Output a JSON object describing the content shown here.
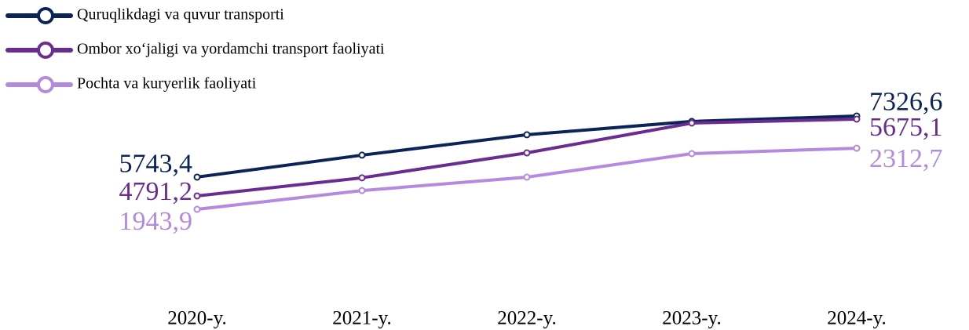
{
  "chart_data": {
    "type": "line",
    "categories": [
      "2020-y.",
      "2021-y.",
      "2022-y.",
      "2023-y.",
      "2024-y."
    ],
    "series": [
      {
        "name": "Quruqlikdagi va quvur  transporti",
        "color": "#0b2458",
        "ylim": [
          4240,
          8300
        ],
        "values": [
          5743.4,
          6312,
          6840,
          7185,
          7326.6
        ],
        "value_labels": [
          "5743,4",
          null,
          null,
          null,
          "7326,6"
        ]
      },
      {
        "name": "Ombor xo‘jaligi va yordamchi transport faoliyati",
        "color": "#6b2c92",
        "ylim": [
          4340,
          6144
        ],
        "values": [
          4791.2,
          5000,
          5287,
          5630,
          5675.1
        ],
        "value_labels": [
          "4791,2",
          null,
          null,
          null,
          "5675,1"
        ]
      },
      {
        "name": "Pochta va kuryerlik faoliyati",
        "color": "#b48ae0",
        "ylim": [
          1788,
          2734
        ],
        "values": [
          1943.9,
          2057,
          2138,
          2280,
          2312.7
        ],
        "value_labels": [
          "1943,9",
          null,
          null,
          null,
          "2312,7"
        ]
      }
    ]
  }
}
